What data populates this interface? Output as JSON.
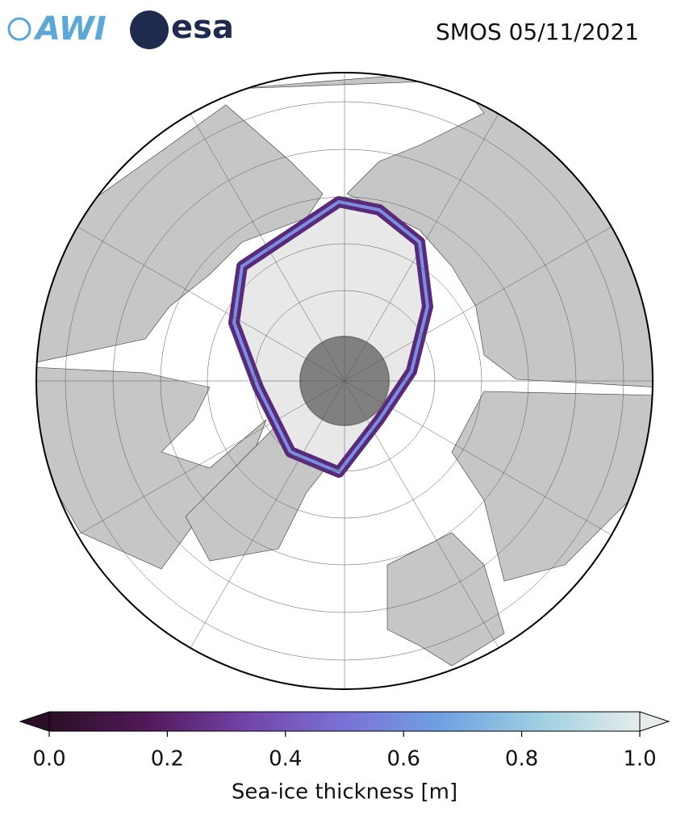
{
  "header": {
    "logos": [
      "AWI",
      "esa"
    ],
    "title": "SMOS 05/11/2021"
  },
  "map": {
    "colorbar": {
      "label": "Sea-ice thickness [m]",
      "lim": [
        0,
        1
      ],
      "ticks": [
        {
          "value": 0,
          "label": "0.0"
        },
        0.2,
        0.4,
        0.6,
        0.8,
        {
          "value": 1,
          "label": "1.0"
        }
      ],
      "colormap": [
        "#2b0f26",
        "#52195a",
        "#7344a8",
        "#7b72d6",
        "#6fa2e2",
        "#9fd0e2",
        "#e6ecea"
      ]
    }
  }
}
